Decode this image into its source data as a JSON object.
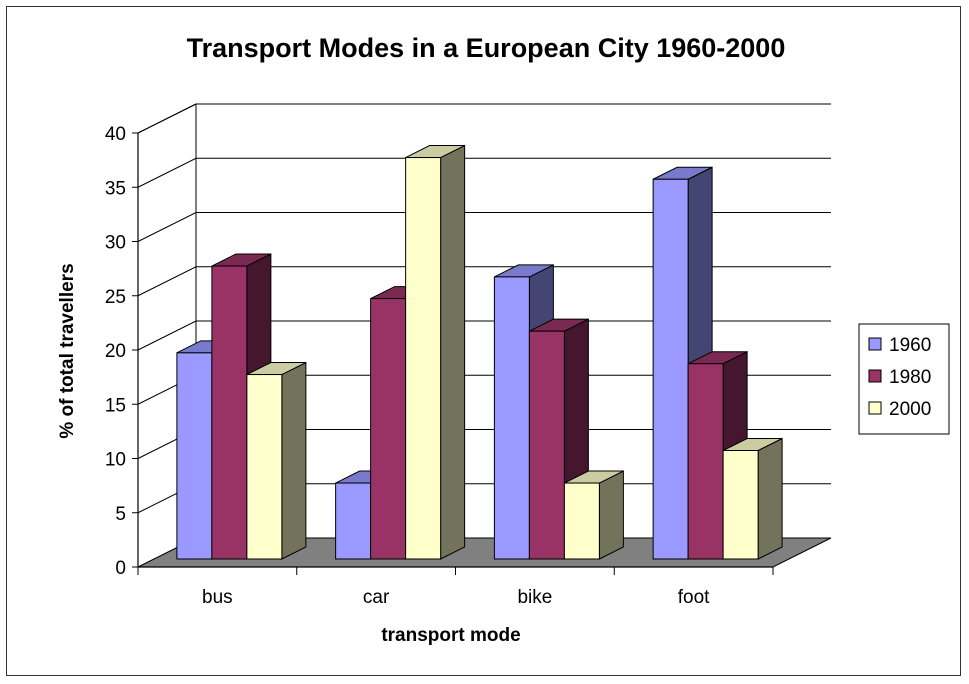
{
  "chart_data": {
    "type": "bar",
    "title": "Transport Modes in a European City 1960-2000",
    "xlabel": "transport mode",
    "ylabel": "% of total travellers",
    "categories": [
      "bus",
      "car",
      "bike",
      "foot"
    ],
    "series": [
      {
        "name": "1960",
        "values": [
          19,
          7,
          26,
          35
        ],
        "color": "#9999ff"
      },
      {
        "name": "1980",
        "values": [
          27,
          24,
          21,
          18
        ],
        "color": "#993366"
      },
      {
        "name": "2000",
        "values": [
          17,
          37,
          7,
          10
        ],
        "color": "#ffffcc"
      }
    ],
    "ylim": [
      0,
      40
    ],
    "yticks": [
      0,
      5,
      10,
      15,
      20,
      25,
      30,
      35,
      40
    ],
    "grid": true,
    "legend": "right",
    "style": "3d-clustered-column"
  }
}
